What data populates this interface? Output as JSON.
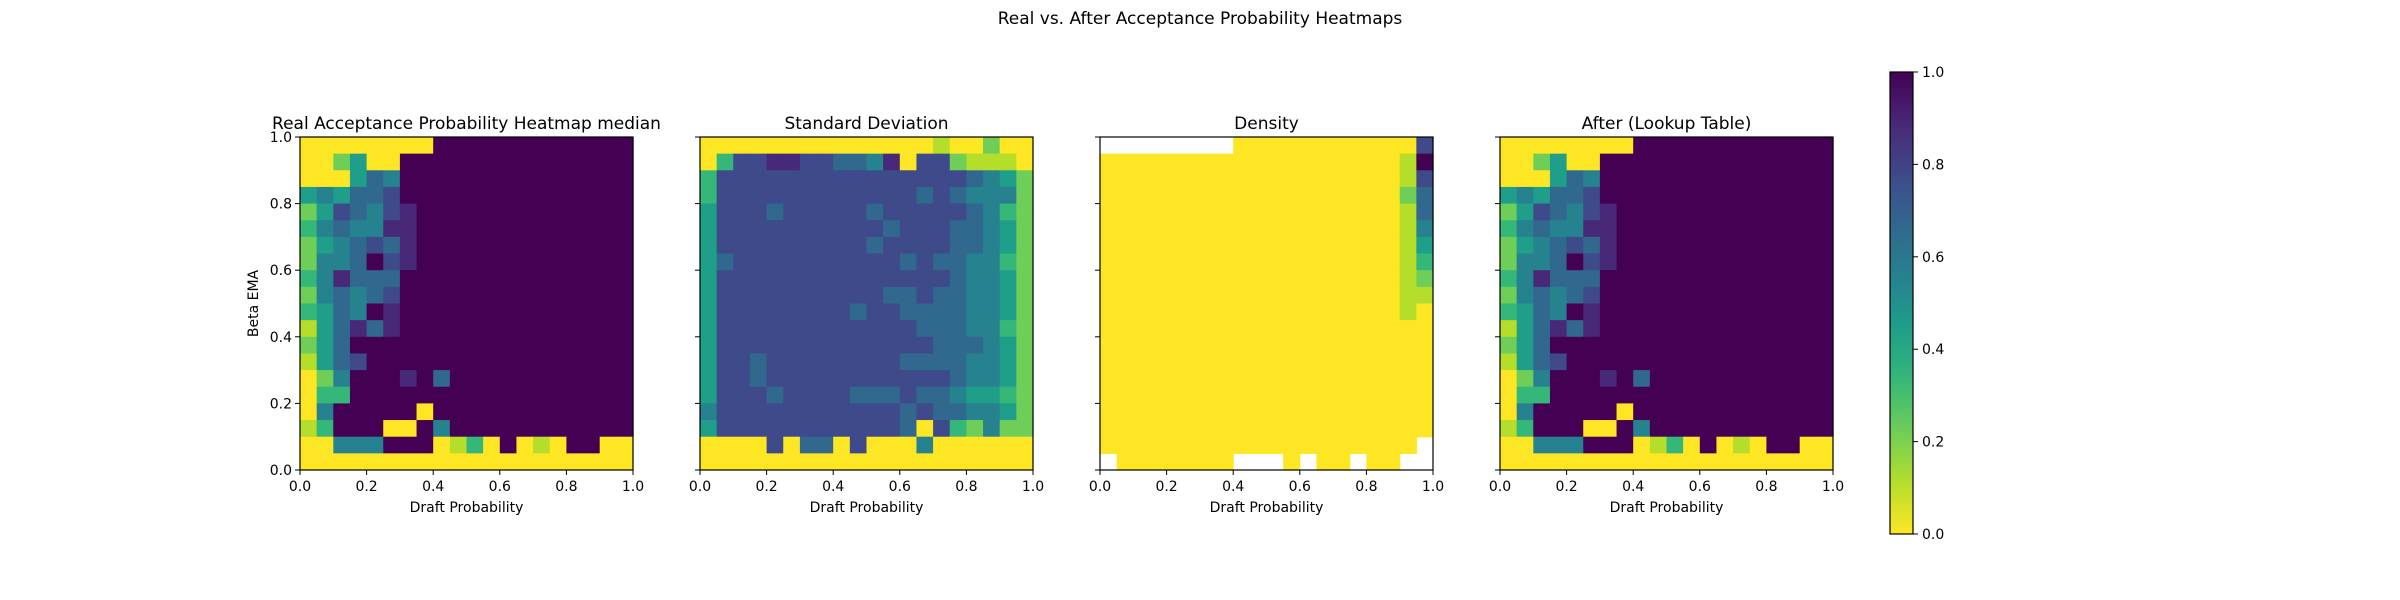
{
  "figure": {
    "suptitle": "Real vs. After Acceptance Probability Heatmaps"
  },
  "chart_data": [
    {
      "type": "heatmap",
      "id": "real",
      "title": "Real Acceptance Probability Heatmap median",
      "xlabel": "Draft Probability",
      "ylabel": "Beta EMA",
      "xlim": [
        0,
        1
      ],
      "ylim": [
        0,
        1
      ],
      "xticks": [
        "0.0",
        "0.2",
        "0.4",
        "0.6",
        "0.8",
        "1.0"
      ],
      "yticks": [
        "0.0",
        "0.2",
        "0.4",
        "0.6",
        "0.8",
        "1.0"
      ],
      "grid_size": [
        20,
        20
      ],
      "row_order": "top-to-bottom (y=1.0 first)",
      "value_scale": "0-9 maps to 0.0-1.0; '.' = no data",
      "rows": [
        "00000000999999999999",
        "00240099999999999999",
        "00046599999999999999",
        "45466799999999999999",
        "24765789999999999999",
        "35655889999999999999",
        "24567689999999999999",
        "25569789999999999999",
        "35866699999999999999",
        "25656799999999999999",
        "34659899999999999999",
        "14686899999999999999",
        "24699999999999999999",
        "14679999999999999999",
        "02599989699999999999",
        "03399999999999999999",
        "05999990999999999999",
        "13999009599999999999",
        "00555999013090109900",
        "00000000000000000000"
      ]
    },
    {
      "type": "heatmap",
      "id": "std",
      "title": "Standard Deviation",
      "xlabel": "Draft Probability",
      "ylabel": "",
      "xlim": [
        0,
        1
      ],
      "ylim": [
        0,
        1
      ],
      "xticks": [
        "0.0",
        "0.2",
        "0.4",
        "0.6",
        "0.8",
        "1.0"
      ],
      "yticks": [
        "0.0",
        "0.2",
        "0.4",
        "0.6",
        "0.8",
        "1.0"
      ],
      "grid_size": [
        20,
        20
      ],
      "row_order": "top-to-bottom (y=1.0 first)",
      "value_scale": "0-9 maps to 0.0-1.0; '.' = no data",
      "rows": [
        "00000000000000100200",
        "03778877665807721110",
        "37777777777777776542",
        "37777777777776765552",
        "47776777776777776532",
        "47777777777677766542",
        "47777777776777766542",
        "46777777777767665532",
        "47777777777777765542",
        "47777777777667665542",
        "47777777767766665542",
        "47777777777776665532",
        "47777777777777666542",
        "47767777777766665542",
        "47767777777777765542",
        "47776777766676654432",
        "57777777777767665542",
        "47777777777760732522",
        "00007066070005000000",
        "00000000000000000000"
      ]
    },
    {
      "type": "heatmap",
      "id": "density",
      "title": "Density",
      "xlabel": "Draft Probability",
      "ylabel": "",
      "xlim": [
        0,
        1
      ],
      "ylim": [
        0,
        1
      ],
      "xticks": [
        "0.0",
        "0.2",
        "0.4",
        "0.6",
        "0.8",
        "1.0"
      ],
      "yticks": [
        "0.0",
        "0.2",
        "0.4",
        "0.6",
        "0.8",
        "1.0"
      ],
      "grid_size": [
        20,
        20
      ],
      "row_order": "top-to-bottom (y=1.0 first)",
      "value_scale": "0-9 maps to 0.0-1.0; '.' = no data",
      "rows": [
        "........000000000007",
        "00000000000000000019",
        "00000000000000000017",
        "00000000000000000026",
        "00000000000000000016",
        "00000000000000000015",
        "00000000000000000014",
        "00000000000000000013",
        "00000000000000000012",
        "00000000000000000011",
        "00000000000000000010",
        "00000000000000000000",
        "00000000000000000000",
        "00000000000000000000",
        "00000000000000000000",
        "00000000000000000000",
        "00000000000000000000",
        "00000000000000000000",
        "0000000000000000000.",
        ".0000000...0.00.00.."
      ]
    },
    {
      "type": "heatmap",
      "id": "after",
      "title": "After (Lookup Table)",
      "xlabel": "Draft Probability",
      "ylabel": "",
      "xlim": [
        0,
        1
      ],
      "ylim": [
        0,
        1
      ],
      "xticks": [
        "0.0",
        "0.2",
        "0.4",
        "0.6",
        "0.8",
        "1.0"
      ],
      "yticks": [
        "0.0",
        "0.2",
        "0.4",
        "0.6",
        "0.8",
        "1.0"
      ],
      "grid_size": [
        20,
        20
      ],
      "row_order": "top-to-bottom (y=1.0 first)",
      "value_scale": "0-9 maps to 0.0-1.0; '.' = no data",
      "rows": [
        "00000000999999999999",
        "00240099999999999999",
        "00046599999999999999",
        "45466799999999999999",
        "24765789999999999999",
        "35655889999999999999",
        "24567689999999999999",
        "25569789999999999999",
        "35866699999999999999",
        "25656799999999999999",
        "34659899999999999999",
        "14686899999999999999",
        "24699999999999999999",
        "14679999999999999999",
        "02599989699999999999",
        "03399999999999999999",
        "05999990999999999999",
        "13999009599999999999",
        "00555999013090109900",
        "00000000000000000000"
      ]
    }
  ],
  "colorbar": {
    "colormap": "viridis_r",
    "range": [
      0.0,
      1.0
    ],
    "ticks": [
      "0.0",
      "0.2",
      "0.4",
      "0.6",
      "0.8",
      "1.0"
    ]
  }
}
